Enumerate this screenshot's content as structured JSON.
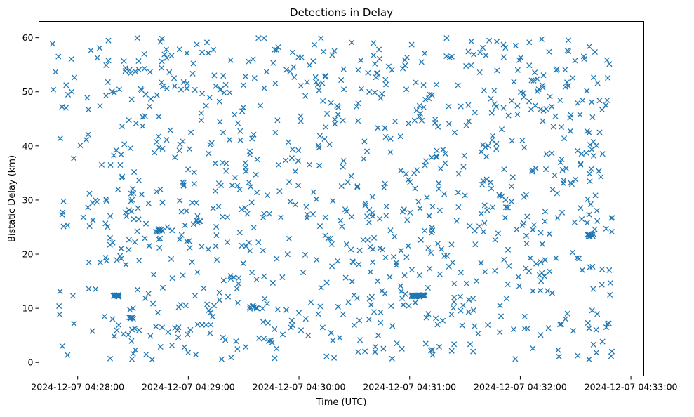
{
  "chart_data": {
    "type": "scatter",
    "title": "Detections in Delay",
    "xlabel": "Time (UTC)",
    "ylabel": "Bistatic Delay (km)",
    "x_unit": "seconds after 2024-12-07 04:27:45",
    "xlim": [
      -6,
      322
    ],
    "ylim": [
      -2.5,
      63
    ],
    "x_ticks": [
      {
        "value": 15,
        "label": "2024-12-07 04:28:00"
      },
      {
        "value": 75,
        "label": "2024-12-07 04:29:00"
      },
      {
        "value": 135,
        "label": "2024-12-07 04:30:00"
      },
      {
        "value": 195,
        "label": "2024-12-07 04:31:00"
      },
      {
        "value": 255,
        "label": "2024-12-07 04:32:00"
      },
      {
        "value": 315,
        "label": "2024-12-07 04:33:00"
      }
    ],
    "y_ticks": [
      {
        "value": 0,
        "label": "0"
      },
      {
        "value": 10,
        "label": "10"
      },
      {
        "value": 20,
        "label": "20"
      },
      {
        "value": 30,
        "label": "30"
      },
      {
        "value": 40,
        "label": "40"
      },
      {
        "value": 50,
        "label": "50"
      },
      {
        "value": 60,
        "label": "60"
      }
    ],
    "marker": "x",
    "color": "#1f77b4",
    "point_count": 1100,
    "generator_seed": 20241207,
    "clusters": [
      {
        "x": 36,
        "y": 12.3,
        "n": 14,
        "spread_x": 1.8,
        "spread_y": 0.15
      },
      {
        "x": 44,
        "y": 8.2,
        "n": 6,
        "spread_x": 1.2,
        "spread_y": 0.15
      },
      {
        "x": 60,
        "y": 24.5,
        "n": 6,
        "spread_x": 1.5,
        "spread_y": 0.2
      },
      {
        "x": 110,
        "y": 10.2,
        "n": 8,
        "spread_x": 2.2,
        "spread_y": 0.3
      },
      {
        "x": 200,
        "y": 12.3,
        "n": 30,
        "spread_x": 4,
        "spread_y": 0.15
      },
      {
        "x": 293,
        "y": 23.5,
        "n": 10,
        "spread_x": 2,
        "spread_y": 0.25
      }
    ]
  }
}
